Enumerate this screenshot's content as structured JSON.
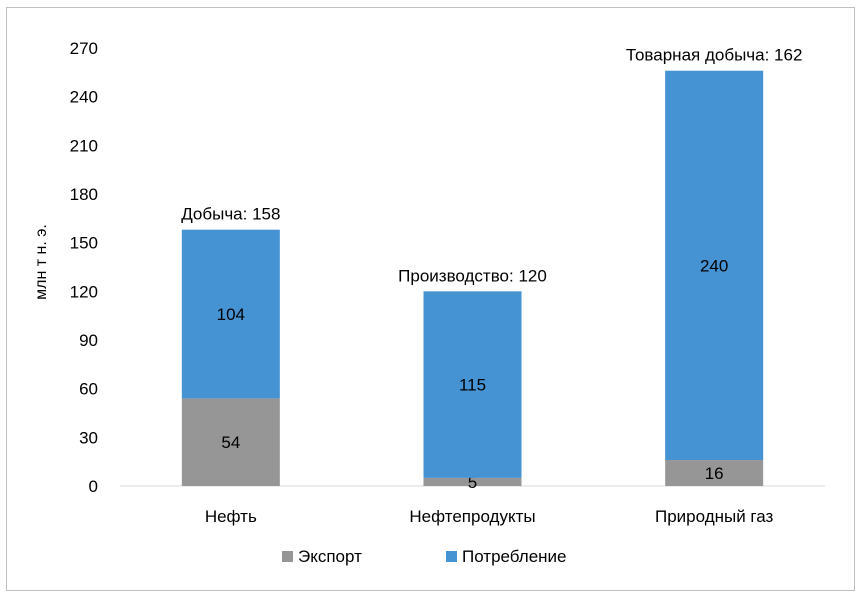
{
  "chart_data": {
    "type": "bar",
    "stacked": true,
    "ylabel": "млн т н. э.",
    "xlabel": "",
    "ylim": [
      0,
      270
    ],
    "yticks": [
      0,
      30,
      60,
      90,
      120,
      150,
      180,
      210,
      240,
      270
    ],
    "categories": [
      "Нефть",
      "Нефтепродукты",
      "Природный газ"
    ],
    "series": [
      {
        "name": "Экспорт",
        "color": "#969696",
        "values": [
          54,
          5,
          16
        ]
      },
      {
        "name": "Потребление",
        "color": "#4693d3",
        "values": [
          104,
          115,
          240
        ]
      }
    ],
    "annotations": [
      "Добыча: 158",
      "Производство: 120",
      "Товарная добыча: 162"
    ],
    "legend_position": "bottom",
    "grid": false
  }
}
